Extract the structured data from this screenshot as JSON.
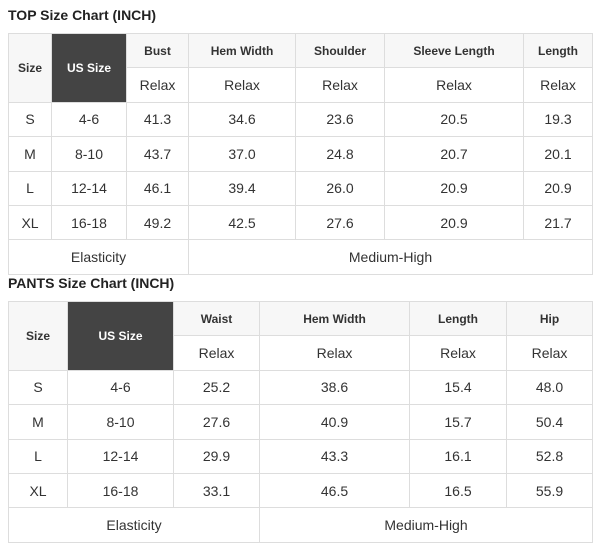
{
  "top": {
    "title": "TOP Size Chart (INCH)",
    "size_label": "Size",
    "us_label": "US Size",
    "columns": [
      "Bust",
      "Hem Width",
      "Shoulder",
      "Sleeve Length",
      "Length"
    ],
    "fit": "Relax",
    "rows": [
      [
        "S",
        "4-6",
        "41.3",
        "34.6",
        "23.6",
        "20.5",
        "19.3"
      ],
      [
        "M",
        "8-10",
        "43.7",
        "37.0",
        "24.8",
        "20.7",
        "20.1"
      ],
      [
        "L",
        "12-14",
        "46.1",
        "39.4",
        "26.0",
        "20.9",
        "20.9"
      ],
      [
        "XL",
        "16-18",
        "49.2",
        "42.5",
        "27.6",
        "20.9",
        "21.7"
      ]
    ],
    "elasticity_label": "Elasticity",
    "elasticity_value": "Medium-High"
  },
  "pants": {
    "title": "PANTS Size Chart (INCH)",
    "size_label": "Size",
    "us_label": "US Size",
    "columns": [
      "Waist",
      "Hem Width",
      "Length",
      "Hip"
    ],
    "fit": "Relax",
    "rows": [
      [
        "S",
        "4-6",
        "25.2",
        "38.6",
        "15.4",
        "48.0"
      ],
      [
        "M",
        "8-10",
        "27.6",
        "40.9",
        "15.7",
        "50.4"
      ],
      [
        "L",
        "12-14",
        "29.9",
        "43.3",
        "16.1",
        "52.8"
      ],
      [
        "XL",
        "16-18",
        "33.1",
        "46.5",
        "16.5",
        "55.9"
      ]
    ],
    "elasticity_label": "Elasticity",
    "elasticity_value": "Medium-High"
  }
}
